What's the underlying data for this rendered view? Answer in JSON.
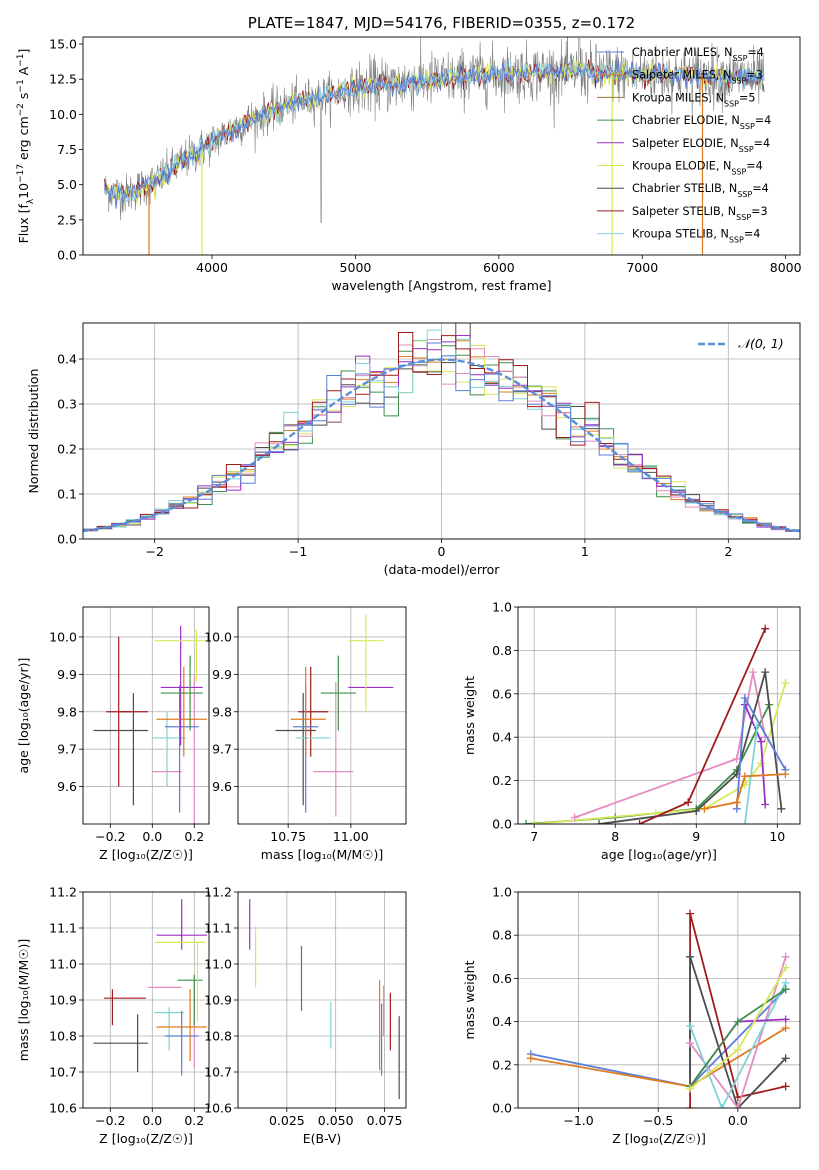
{
  "colors": {
    "chabrier_miles": "#5b7fd6",
    "salpeter_miles": "#e07b1f",
    "kroupa_miles": "#8f7a3a",
    "chabrier_elodie": "#3f8f4a",
    "salpeter_elodie": "#9b30c8",
    "kroupa_elodie": "#d6e85a",
    "chabrier_stelib": "#4d4d4d",
    "salpeter_stelib": "#a11c1c",
    "kroupa_stelib": "#8fd0e8",
    "kroupa_pink": "#e58bc0",
    "cyan": "#7fd3d6",
    "gauss": "#5b8fd9",
    "grid": "#b0b0b0"
  },
  "chart_data": [
    {
      "id": "spectrum",
      "type": "line",
      "title": "PLATE=1847, MJD=54176, FIBERID=0355, z=0.172",
      "xlabel": "wavelength [Angstrom, rest frame]",
      "ylabel": "Flux [f_λ10^-17 erg cm^-2 s^-1 A^-1]",
      "xlim": [
        3100,
        8100
      ],
      "ylim": [
        0,
        15.5
      ],
      "xticks": [
        "4000",
        "5000",
        "6000",
        "7000",
        "8000"
      ],
      "yticks": [
        "0.0",
        "2.5",
        "5.0",
        "7.5",
        "10.0",
        "12.5",
        "15.0"
      ],
      "grid": false,
      "legend_position": "right",
      "continuum_x": [
        3250,
        3400,
        3600,
        3800,
        4000,
        4200,
        4500,
        4800,
        5100,
        5400,
        5700,
        6000,
        6300,
        6600,
        6900,
        7200,
        7500,
        7850
      ],
      "continuum_y": [
        4.6,
        4.3,
        5.2,
        6.7,
        8.0,
        9.3,
        10.6,
        11.4,
        12.0,
        12.3,
        12.6,
        12.9,
        13.0,
        13.0,
        12.9,
        12.8,
        12.7,
        12.6
      ],
      "legend": [
        {
          "label": "Chabrier MILES, N",
          "sub": "SSP",
          "tail": "=4"
        },
        {
          "label": "Salpeter MILES, N",
          "sub": "SSP",
          "tail": "=3"
        },
        {
          "label": "Kroupa MILES, N",
          "sub": "SSP",
          "tail": "=5"
        },
        {
          "label": "Chabrier ELODIE, N",
          "sub": "SSP",
          "tail": "=4"
        },
        {
          "label": "Salpeter ELODIE, N",
          "sub": "SSP",
          "tail": "=4"
        },
        {
          "label": "Kroupa ELODIE, N",
          "sub": "SSP",
          "tail": "=4"
        },
        {
          "label": "Chabrier STELIB, N",
          "sub": "SSP",
          "tail": "=4"
        },
        {
          "label": "Salpeter STELIB, N",
          "sub": "SSP",
          "tail": "=3"
        },
        {
          "label": "Kroupa STELIB, N",
          "sub": "SSP",
          "tail": "=4"
        }
      ]
    },
    {
      "id": "residuals",
      "type": "area",
      "xlabel": "(data-model)/error",
      "ylabel": "Normed distribution",
      "xlim": [
        -2.5,
        2.5
      ],
      "ylim": [
        0,
        0.48
      ],
      "xticks": [
        "−2",
        "−1",
        "0",
        "1",
        "2"
      ],
      "yticks": [
        "0.0",
        "0.1",
        "0.2",
        "0.3",
        "0.4"
      ],
      "grid": true,
      "legend_label": "𝒩(0, 1)",
      "legend_position": "top-right",
      "bin_width": 0.1
    },
    {
      "id": "age_vs_Z",
      "type": "scatter",
      "xlabel": "Z [log₁₀(Z/Z☉)]",
      "ylabel": "age  [log₁₀(age/yr)]",
      "xlim": [
        -0.33,
        0.27
      ],
      "ylim": [
        9.5,
        10.08
      ],
      "xticks": [
        "−0.2",
        "0.0",
        "0.2"
      ],
      "yticks": [
        "9.6",
        "9.7",
        "9.8",
        "9.9",
        "10.0"
      ],
      "grid": true,
      "points": [
        {
          "c": "chabrier_stelib",
          "x": -0.15,
          "dx": 0.13,
          "y": 9.75,
          "dy": 0.0
        },
        {
          "c": "chabrier_stelib",
          "x": -0.09,
          "dx": 0.0,
          "y": 9.7,
          "dy": 0.15
        },
        {
          "c": "salpeter_stelib",
          "x": -0.16,
          "dx": 0.06,
          "y": 9.8,
          "dy": 0.2
        },
        {
          "c": "salpeter_stelib",
          "x": -0.09,
          "dx": 0.07,
          "y": 9.8,
          "dy": 0.0
        },
        {
          "c": "cyan",
          "x": 0.08,
          "dx": 0.08,
          "y": 9.73,
          "dy": 0.0
        },
        {
          "c": "cyan",
          "x": 0.07,
          "dx": 0.0,
          "y": 9.7,
          "dy": 0.1
        },
        {
          "c": "kroupa_pink",
          "x": 0.07,
          "dx": 0.07,
          "y": 9.64,
          "dy": 0.0
        },
        {
          "c": "kroupa_pink",
          "x": 0.2,
          "dx": 0.0,
          "y": 9.7,
          "dy": 0.2
        },
        {
          "c": "chabrier_miles",
          "x": 0.14,
          "dx": 0.08,
          "y": 9.76,
          "dy": 0.0
        },
        {
          "c": "chabrier_miles",
          "x": 0.13,
          "dx": 0.0,
          "y": 9.7,
          "dy": 0.17
        },
        {
          "c": "salpeter_miles",
          "x": 0.14,
          "dx": 0.12,
          "y": 9.78,
          "dy": 0.0
        },
        {
          "c": "salpeter_miles",
          "x": 0.15,
          "dx": 0.0,
          "y": 9.8,
          "dy": 0.12
        },
        {
          "c": "salpeter_elodie",
          "x": 0.14,
          "dx": 0.1,
          "y": 9.865,
          "dy": 0.0
        },
        {
          "c": "salpeter_elodie",
          "x": 0.135,
          "dx": 0.0,
          "y": 9.87,
          "dy": 0.16
        },
        {
          "c": "chabrier_elodie",
          "x": 0.14,
          "dx": 0.1,
          "y": 9.85,
          "dy": 0.0
        },
        {
          "c": "chabrier_elodie",
          "x": 0.18,
          "dx": 0.0,
          "y": 9.85,
          "dy": 0.1
        },
        {
          "c": "kroupa_elodie",
          "x": 0.13,
          "dx": 0.12,
          "y": 9.99,
          "dy": 0.0
        },
        {
          "c": "kroupa_elodie",
          "x": 0.21,
          "dx": 0.0,
          "y": 9.95,
          "dy": 0.07
        }
      ]
    },
    {
      "id": "age_vs_mass",
      "type": "scatter",
      "xlabel": "mass [log₁₀(M/M☉)]",
      "ylabel": "",
      "xlim": [
        10.55,
        11.22
      ],
      "ylim": [
        9.5,
        10.08
      ],
      "xticks": [
        "10.75",
        "11.00"
      ],
      "yticks": [
        "9.6",
        "9.7",
        "9.8",
        "9.9",
        "10.0"
      ],
      "grid": true,
      "points": [
        {
          "c": "chabrier_stelib",
          "x": 10.78,
          "dx": 0.08,
          "y": 9.75,
          "dy": 0.0
        },
        {
          "c": "chabrier_stelib",
          "x": 10.81,
          "dx": 0.0,
          "y": 9.7,
          "dy": 0.15
        },
        {
          "c": "salpeter_stelib",
          "x": 10.85,
          "dx": 0.06,
          "y": 9.8,
          "dy": 0.0
        },
        {
          "c": "salpeter_stelib",
          "x": 10.84,
          "dx": 0.0,
          "y": 9.8,
          "dy": 0.12
        },
        {
          "c": "cyan",
          "x": 10.85,
          "dx": 0.07,
          "y": 9.73,
          "dy": 0.0
        },
        {
          "c": "kroupa_pink",
          "x": 10.93,
          "dx": 0.08,
          "y": 9.64,
          "dy": 0.0
        },
        {
          "c": "kroupa_pink",
          "x": 10.94,
          "dx": 0.0,
          "y": 9.7,
          "dy": 0.18
        },
        {
          "c": "chabrier_miles",
          "x": 10.82,
          "dx": 0.05,
          "y": 9.76,
          "dy": 0.0
        },
        {
          "c": "chabrier_miles",
          "x": 10.82,
          "dx": 0.0,
          "y": 9.7,
          "dy": 0.17
        },
        {
          "c": "salpeter_miles",
          "x": 10.83,
          "dx": 0.07,
          "y": 9.78,
          "dy": 0.0
        },
        {
          "c": "salpeter_miles",
          "x": 10.82,
          "dx": 0.0,
          "y": 9.8,
          "dy": 0.12
        },
        {
          "c": "chabrier_elodie",
          "x": 10.95,
          "dx": 0.07,
          "y": 9.85,
          "dy": 0.0
        },
        {
          "c": "chabrier_elodie",
          "x": 10.95,
          "dx": 0.0,
          "y": 9.85,
          "dy": 0.1
        },
        {
          "c": "salpeter_elodie",
          "x": 11.08,
          "dx": 0.09,
          "y": 9.865,
          "dy": 0.0
        },
        {
          "c": "kroupa_elodie",
          "x": 11.06,
          "dx": 0.07,
          "y": 9.99,
          "dy": 0.0
        },
        {
          "c": "kroupa_elodie",
          "x": 11.06,
          "dx": 0.0,
          "y": 9.93,
          "dy": 0.13
        }
      ]
    },
    {
      "id": "weight_vs_age",
      "type": "line",
      "xlabel": "age  [log₁₀(age/yr)]",
      "ylabel": "mass weight",
      "xlim": [
        6.8,
        10.28
      ],
      "ylim": [
        0,
        1.0
      ],
      "xticks": [
        "7",
        "8",
        "9",
        "10"
      ],
      "yticks": [
        "0.0",
        "0.2",
        "0.4",
        "0.6",
        "0.8",
        "1.0"
      ],
      "grid": true,
      "series": [
        {
          "c": "chabrier_elodie",
          "x": [
            6.9,
            8.0,
            9.0,
            9.5,
            9.9
          ],
          "y": [
            0.0,
            0.03,
            0.07,
            0.25,
            0.55
          ]
        },
        {
          "c": "kroupa_elodie",
          "x": [
            7.0,
            8.5,
            9.1,
            9.6,
            9.8,
            10.1
          ],
          "y": [
            0.0,
            0.05,
            0.07,
            0.18,
            0.28,
            0.65
          ]
        },
        {
          "c": "kroupa_pink",
          "x": [
            7.5,
            9.5,
            9.7,
            9.85
          ],
          "y": [
            0.03,
            0.3,
            0.7,
            0.4
          ]
        },
        {
          "c": "chabrier_stelib",
          "x": [
            7.8,
            9.0,
            9.5,
            9.85,
            10.05
          ],
          "y": [
            0.0,
            0.06,
            0.23,
            0.7,
            0.07
          ]
        },
        {
          "c": "salpeter_stelib",
          "x": [
            8.3,
            8.9,
            9.85
          ],
          "y": [
            0.0,
            0.1,
            0.9
          ]
        },
        {
          "c": "salpeter_elodie",
          "x": [
            9.6,
            9.8,
            9.85
          ],
          "y": [
            0.55,
            0.38,
            0.09
          ]
        },
        {
          "c": "cyan",
          "x": [
            9.6,
            9.75
          ],
          "y": [
            0.0,
            0.45
          ]
        },
        {
          "c": "chabrier_miles",
          "x": [
            9.5,
            9.6,
            10.1
          ],
          "y": [
            0.07,
            0.58,
            0.25
          ]
        },
        {
          "c": "salpeter_miles",
          "x": [
            9.1,
            9.5,
            9.6,
            10.1
          ],
          "y": [
            0.07,
            0.1,
            0.22,
            0.23
          ]
        }
      ]
    },
    {
      "id": "mass_vs_Z",
      "type": "scatter",
      "xlabel": "Z [log₁₀(Z/Z☉)]",
      "ylabel": "mass [log₁₀(M/M☉)]",
      "xlim": [
        -0.33,
        0.27
      ],
      "ylim": [
        10.6,
        11.2
      ],
      "xticks": [
        "−0.2",
        "0.0",
        "0.2"
      ],
      "yticks": [
        "10.6",
        "10.7",
        "10.8",
        "10.9",
        "11.0",
        "11.1",
        "11.2"
      ],
      "grid": true,
      "points": [
        {
          "c": "chabrier_stelib",
          "x": -0.15,
          "dx": 0.13,
          "y": 10.78,
          "dy": 0.0
        },
        {
          "c": "chabrier_stelib",
          "x": -0.07,
          "dx": 0.0,
          "y": 10.78,
          "dy": 0.08
        },
        {
          "c": "salpeter_stelib",
          "x": -0.13,
          "dx": 0.1,
          "y": 10.905,
          "dy": 0.0
        },
        {
          "c": "salpeter_stelib",
          "x": -0.19,
          "dx": 0.0,
          "y": 10.88,
          "dy": 0.05
        },
        {
          "c": "cyan",
          "x": 0.08,
          "dx": 0.07,
          "y": 10.865,
          "dy": 0.0
        },
        {
          "c": "cyan",
          "x": 0.08,
          "dx": 0.0,
          "y": 10.82,
          "dy": 0.06
        },
        {
          "c": "kroupa_pink",
          "x": 0.06,
          "dx": 0.08,
          "y": 10.935,
          "dy": 0.0
        },
        {
          "c": "kroupa_pink",
          "x": 0.2,
          "dx": 0.0,
          "y": 10.83,
          "dy": 0.12
        },
        {
          "c": "chabrier_miles",
          "x": 0.14,
          "dx": 0.08,
          "y": 10.8,
          "dy": 0.0
        },
        {
          "c": "chabrier_miles",
          "x": 0.14,
          "dx": 0.0,
          "y": 10.78,
          "dy": 0.09
        },
        {
          "c": "salpeter_miles",
          "x": 0.14,
          "dx": 0.12,
          "y": 10.825,
          "dy": 0.0
        },
        {
          "c": "salpeter_miles",
          "x": 0.18,
          "dx": 0.0,
          "y": 10.83,
          "dy": 0.1
        },
        {
          "c": "chabrier_elodie",
          "x": 0.18,
          "dx": 0.06,
          "y": 10.955,
          "dy": 0.0
        },
        {
          "c": "chabrier_elodie",
          "x": 0.2,
          "dx": 0.0,
          "y": 10.9,
          "dy": 0.07
        },
        {
          "c": "salpeter_elodie",
          "x": 0.14,
          "dx": 0.12,
          "y": 11.08,
          "dy": 0.0
        },
        {
          "c": "salpeter_elodie",
          "x": 0.14,
          "dx": 0.0,
          "y": 11.11,
          "dy": 0.07
        },
        {
          "c": "kroupa_elodie",
          "x": 0.13,
          "dx": 0.12,
          "y": 11.06,
          "dy": 0.0
        },
        {
          "c": "kroupa_elodie",
          "x": 0.215,
          "dx": 0.0,
          "y": 10.95,
          "dy": 0.11
        }
      ]
    },
    {
      "id": "mass_vs_ebv",
      "type": "scatter",
      "xlabel": "E(B-V)",
      "ylabel": "",
      "xlim": [
        0.0,
        0.086
      ],
      "ylim": [
        10.6,
        11.2
      ],
      "xticks": [
        "0.025",
        "0.050",
        "0.075"
      ],
      "yticks": [
        "10.6",
        "10.7",
        "10.8",
        "10.9",
        "11.0",
        "11.1",
        "11.2"
      ],
      "grid": true,
      "points": [
        {
          "c": "salpeter_elodie",
          "x": 0.006,
          "dx": 0.0,
          "y": 11.11,
          "dy": 0.07
        },
        {
          "c": "kroupa_elodie",
          "x": 0.009,
          "dx": 0.0,
          "y": 11.02,
          "dy": 0.085
        },
        {
          "c": "chabrier_elodie",
          "x": 0.0325,
          "dx": 0.0,
          "y": 10.96,
          "dy": 0.09
        },
        {
          "c": "cyan",
          "x": 0.0475,
          "dx": 0.0,
          "y": 10.83,
          "dy": 0.065
        },
        {
          "c": "salpeter_miles",
          "x": 0.0725,
          "dx": 0.0,
          "y": 10.83,
          "dy": 0.125
        },
        {
          "c": "chabrier_miles",
          "x": 0.0735,
          "dx": 0.0,
          "y": 10.79,
          "dy": 0.1
        },
        {
          "c": "kroupa_pink",
          "x": 0.0745,
          "dx": 0.0,
          "y": 10.87,
          "dy": 0.07
        },
        {
          "c": "salpeter_stelib",
          "x": 0.078,
          "dx": 0.0,
          "y": 10.84,
          "dy": 0.08
        },
        {
          "c": "chabrier_stelib",
          "x": 0.0825,
          "dx": 0.0,
          "y": 10.74,
          "dy": 0.115
        }
      ]
    },
    {
      "id": "weight_vs_Z",
      "type": "line",
      "xlabel": "Z [log₁₀(Z/Z☉)]",
      "ylabel": "mass weight",
      "xlim": [
        -1.38,
        0.39
      ],
      "ylim": [
        0,
        1.0
      ],
      "xticks": [
        "−1.0",
        "−0.5",
        "0.0"
      ],
      "yticks": [
        "0.0",
        "0.2",
        "0.4",
        "0.6",
        "0.8",
        "1.0"
      ],
      "grid": true,
      "series": [
        {
          "c": "chabrier_miles",
          "x": [
            -1.3,
            -0.3,
            0.3
          ],
          "y": [
            0.25,
            0.1,
            0.55
          ]
        },
        {
          "c": "salpeter_miles",
          "x": [
            -1.3,
            -0.3,
            0.3
          ],
          "y": [
            0.23,
            0.1,
            0.37
          ]
        },
        {
          "c": "salpeter_stelib",
          "x": [
            -0.3,
            -0.3,
            0.0,
            0.3
          ],
          "y": [
            0.0,
            0.9,
            0.05,
            0.1
          ]
        },
        {
          "c": "chabrier_stelib",
          "x": [
            -0.3,
            -0.3,
            0.0,
            0.3
          ],
          "y": [
            0.1,
            0.7,
            0.0,
            0.23
          ]
        },
        {
          "c": "kroupa_pink",
          "x": [
            -0.3,
            0.0,
            0.3
          ],
          "y": [
            0.3,
            0.0,
            0.7
          ]
        },
        {
          "c": "cyan",
          "x": [
            -0.3,
            -0.1,
            0.3
          ],
          "y": [
            0.38,
            0.0,
            0.58
          ]
        },
        {
          "c": "salpeter_elodie",
          "x": [
            -0.3,
            0.0,
            0.3
          ],
          "y": [
            0.1,
            0.4,
            0.41
          ]
        },
        {
          "c": "chabrier_elodie",
          "x": [
            -0.3,
            0.0,
            0.3
          ],
          "y": [
            0.1,
            0.4,
            0.55
          ]
        },
        {
          "c": "kroupa_elodie",
          "x": [
            -0.3,
            0.0,
            0.3
          ],
          "y": [
            0.09,
            0.27,
            0.65
          ]
        }
      ]
    }
  ]
}
